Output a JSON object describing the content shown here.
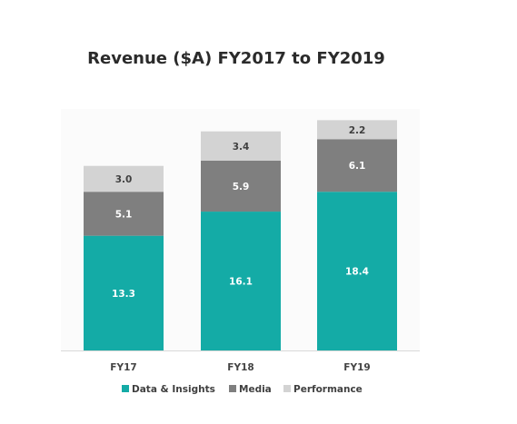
{
  "chart_data": {
    "type": "bar",
    "stacked": true,
    "title": "Revenue ($A) FY2017 to FY2019",
    "categories": [
      "FY17",
      "FY18",
      "FY19"
    ],
    "series": [
      {
        "name": "Data & Insights",
        "values": [
          13.3,
          16.1,
          18.4
        ],
        "color": "#14aba6",
        "label_color": "#ffffff"
      },
      {
        "name": "Media",
        "values": [
          5.1,
          5.9,
          6.1
        ],
        "color": "#7f7f7f",
        "label_color": "#ffffff"
      },
      {
        "name": "Performance",
        "values": [
          3.0,
          3.4,
          2.2
        ],
        "color": "#d3d3d3",
        "label_color": "#404040"
      }
    ],
    "data_labels": [
      [
        "13.3",
        "16.1",
        "18.4"
      ],
      [
        "5.1",
        "5.9",
        "6.1"
      ],
      [
        "3.0",
        "3.4",
        "2.2"
      ]
    ],
    "ylim": [
      0,
      28
    ],
    "grid": false,
    "legend_position": "bottom"
  }
}
